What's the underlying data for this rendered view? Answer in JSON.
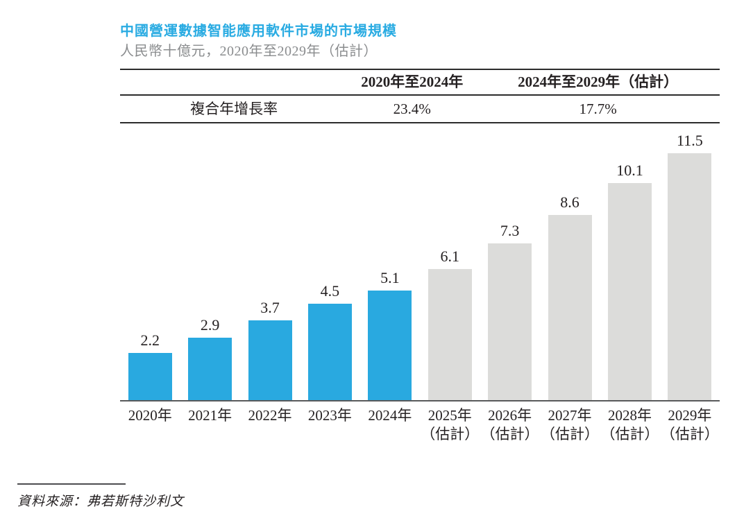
{
  "title": "中國營運數據智能應用軟件市場的市場規模",
  "subtitle": "人民幣十億元，2020年至2029年（估計）",
  "cagr_table": {
    "row_label": "複合年增長率",
    "period1_header": "2020年至2024年",
    "period2_header": "2024年至2029年（估計）",
    "period1_value": "23.4%",
    "period2_value": "17.7%"
  },
  "source": "資料來源：弗若斯特沙利文",
  "colors": {
    "title_accent": "#29ABE2",
    "bar_actual": "#29A9E0",
    "bar_estimate": "#DCDCDA",
    "axis_line": "#58595B",
    "table_line": "#2B2B2B",
    "text": "#231F20",
    "subtitle_text": "#8A8C8E"
  },
  "chart_data": {
    "type": "bar",
    "title": "中國營運數據智能應用軟件市場的市場規模",
    "ylabel": "人民幣十億元",
    "xlabel": "",
    "categories": [
      "2020年",
      "2021年",
      "2022年",
      "2023年",
      "2024年",
      "2025年",
      "2026年",
      "2027年",
      "2028年",
      "2029年"
    ],
    "values": [
      2.2,
      2.9,
      3.7,
      4.5,
      5.1,
      6.1,
      7.3,
      8.6,
      10.1,
      11.5
    ],
    "value_labels": [
      "2.2",
      "2.9",
      "3.7",
      "4.5",
      "5.1",
      "6.1",
      "7.3",
      "8.6",
      "10.1",
      "11.5"
    ],
    "estimates": [
      false,
      false,
      false,
      false,
      false,
      true,
      true,
      true,
      true,
      true
    ],
    "estimate_suffix": "（估計）",
    "series_split": {
      "actual_years": "2020-2024",
      "estimate_years": "2025-2029"
    },
    "ylim": [
      0,
      12.5
    ],
    "grid": false,
    "legend": "none"
  }
}
